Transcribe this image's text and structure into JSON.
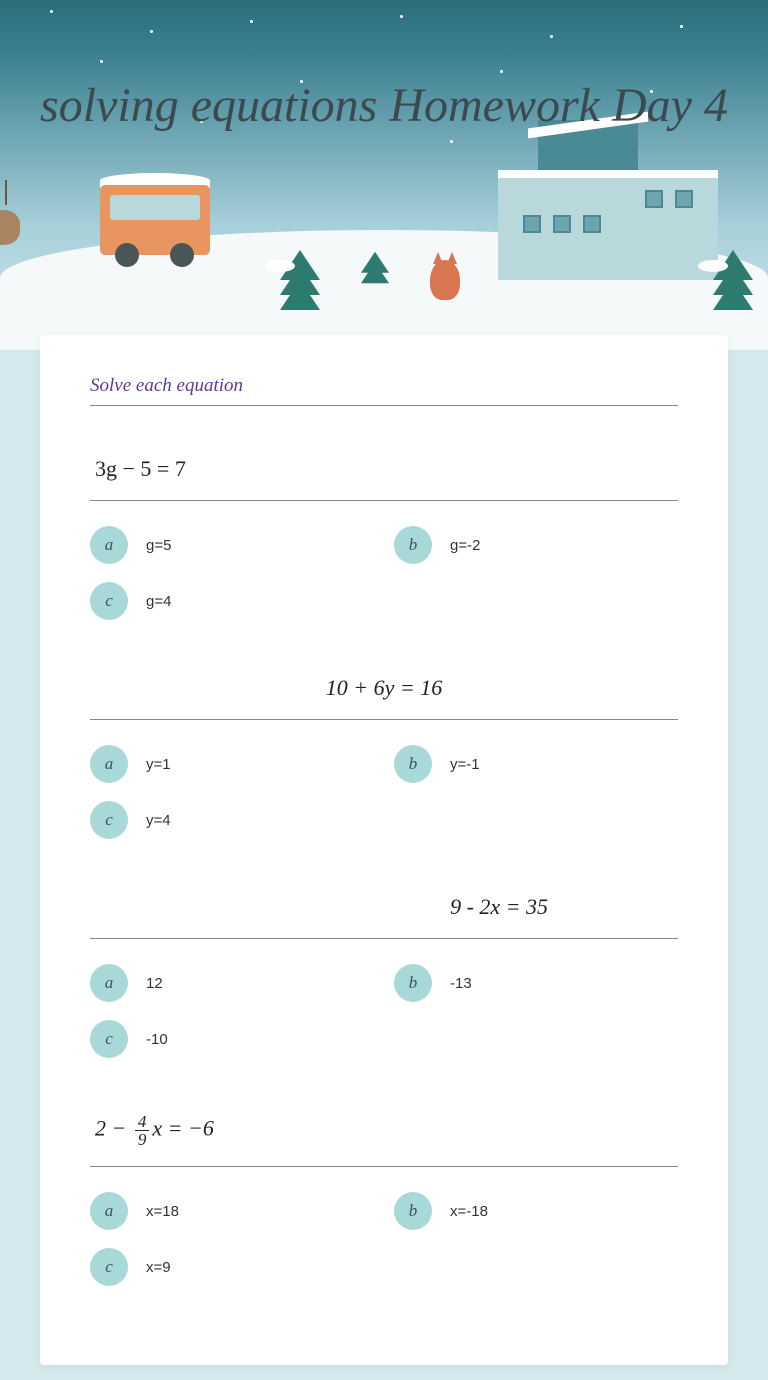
{
  "title": "solving equations Homework Day 4",
  "instruction": "Solve each equation",
  "colors": {
    "page_bg": "#d4e8ed",
    "card_bg": "#ffffff",
    "badge_bg": "#a8d8d8",
    "instruction_color": "#5d3a9b",
    "divider": "#888888"
  },
  "questions": [
    {
      "style": "serif",
      "text_raw": "3g − 5 = 7",
      "opts": [
        {
          "k": "a",
          "v": "g=5"
        },
        {
          "k": "b",
          "v": "g=-2"
        },
        {
          "k": "c",
          "v": "g=4"
        }
      ]
    },
    {
      "style": "hand",
      "text_raw": "10 + 6y = 16",
      "opts": [
        {
          "k": "a",
          "v": "y=1"
        },
        {
          "k": "b",
          "v": "y=-1"
        },
        {
          "k": "c",
          "v": "y=4"
        }
      ]
    },
    {
      "style": "hand-r",
      "text_raw": "9 - 2x = 35",
      "opts": [
        {
          "k": "a",
          "v": "12"
        },
        {
          "k": "b",
          "v": "-13"
        },
        {
          "k": "c",
          "v": "-10"
        }
      ]
    },
    {
      "style": "serif",
      "frac": {
        "pre": "2 − ",
        "num": "4",
        "den": "9",
        "post": "x = −6"
      },
      "opts": [
        {
          "k": "a",
          "v": "x=18"
        },
        {
          "k": "b",
          "v": "x=-18"
        },
        {
          "k": "c",
          "v": "x=9"
        }
      ]
    }
  ]
}
